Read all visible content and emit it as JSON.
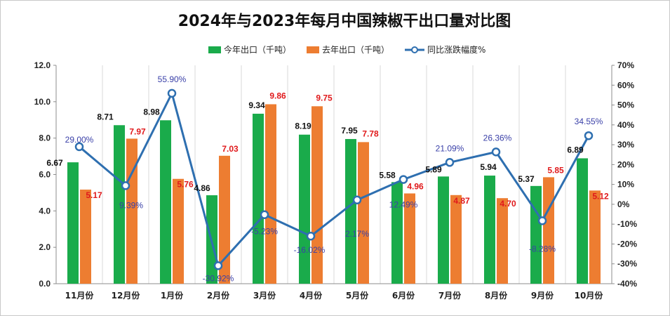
{
  "chart_data": {
    "type": "bar",
    "title": "2024年与2023年每月中国辣椒干出口量对比图",
    "categories": [
      "11月份",
      "12月份",
      "1月份",
      "2月份",
      "3月份",
      "4月份",
      "5月份",
      "6月份",
      "7月份",
      "8月份",
      "9月份",
      "10月份"
    ],
    "series": [
      {
        "name": "今年出口（千吨）",
        "kind": "bar",
        "axis": "left",
        "color": "#1aab4b",
        "values": [
          6.67,
          8.71,
          8.98,
          4.86,
          9.34,
          8.19,
          7.95,
          5.58,
          5.89,
          5.94,
          5.37,
          6.89
        ],
        "labels": [
          "6.67",
          "8.71",
          "8.98",
          "4.86",
          "9.34",
          "8.19",
          "7.95",
          "5.58",
          "5.89",
          "5.94",
          "5.37",
          "6.89"
        ]
      },
      {
        "name": "去年出口（千吨）",
        "kind": "bar",
        "axis": "left",
        "color": "#ed7d31",
        "values": [
          5.17,
          7.97,
          5.76,
          7.03,
          9.86,
          9.75,
          7.78,
          4.96,
          4.87,
          4.7,
          5.85,
          5.12
        ],
        "labels": [
          "5.17",
          "7.97",
          "5.76",
          "7.03",
          "9.86",
          "9.75",
          "7.78",
          "4.96",
          "4.87",
          "4.70",
          "5.85",
          "5.12"
        ]
      },
      {
        "name": "同比涨跌幅度%",
        "kind": "line",
        "axis": "right",
        "color": "#2e6fb0",
        "values": [
          29.0,
          9.39,
          55.9,
          -30.92,
          -5.23,
          -16.02,
          2.17,
          12.49,
          21.09,
          26.36,
          -8.28,
          34.55
        ],
        "labels": [
          "29.00%",
          "9.39%",
          "55.90%",
          "-30.92%",
          "-5.23%",
          "-16.02%",
          "2.17%",
          "12.49%",
          "21.09%",
          "26.36%",
          "-8.28%",
          "34.55%"
        ]
      }
    ],
    "y_left": {
      "min": 0,
      "max": 12,
      "ticks": [
        "0.0",
        "2.0",
        "4.0",
        "6.0",
        "8.0",
        "10.0",
        "12.0"
      ]
    },
    "y_right": {
      "min": -40,
      "max": 70,
      "ticks": [
        "-40%",
        "-30%",
        "-20%",
        "-10%",
        "0%",
        "10%",
        "20%",
        "30%",
        "40%",
        "50%",
        "60%",
        "70%"
      ]
    },
    "grid": "vertical",
    "legend": "top-center"
  }
}
